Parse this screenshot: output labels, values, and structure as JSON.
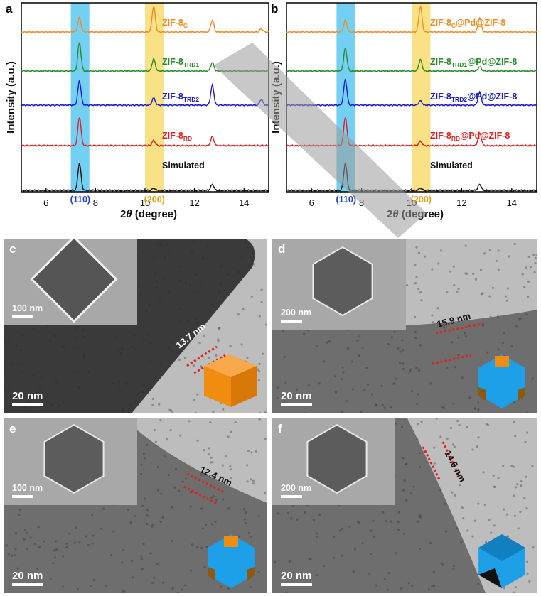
{
  "xrd_panels": [
    {
      "letter": "a",
      "series": [
        {
          "label": "ZIF-8",
          "sub": "C",
          "suffix": "",
          "color": "#f08c20",
          "peaks": [
            [
              7.35,
              0.55
            ],
            [
              10.35,
              1.0
            ],
            [
              12.72,
              0.45
            ],
            [
              14.7,
              0.12
            ]
          ]
        },
        {
          "label": "ZIF-8",
          "sub": "TRD1",
          "suffix": "",
          "color": "#2a8a2a",
          "peaks": [
            [
              7.35,
              1.0
            ],
            [
              10.35,
              0.42
            ],
            [
              12.72,
              0.3
            ]
          ]
        },
        {
          "label": "ZIF-8",
          "sub": "TRD2",
          "suffix": "",
          "color": "#1a1ac8",
          "peaks": [
            [
              7.35,
              0.85
            ],
            [
              10.35,
              0.25
            ],
            [
              12.72,
              0.7
            ],
            [
              14.7,
              0.2
            ]
          ]
        },
        {
          "label": "ZIF-8",
          "sub": "RD",
          "suffix": "",
          "color": "#e02020",
          "peaks": [
            [
              7.35,
              1.0
            ],
            [
              10.35,
              0.18
            ],
            [
              12.72,
              0.32
            ]
          ]
        },
        {
          "label": "Simulated",
          "sub": "",
          "suffix": "",
          "color": "#111111",
          "peaks": [
            [
              7.35,
              1.0
            ],
            [
              10.35,
              0.08
            ],
            [
              12.72,
              0.22
            ]
          ]
        }
      ]
    },
    {
      "letter": "b",
      "series": [
        {
          "label": "ZIF-8",
          "sub": "C",
          "suffix": "@Pd@ZIF-8",
          "color": "#f08c20",
          "peaks": [
            [
              7.35,
              0.45
            ],
            [
              10.35,
              1.0
            ],
            [
              12.72,
              0.55
            ]
          ]
        },
        {
          "label": "ZIF-8",
          "sub": "TRD1",
          "suffix": "@Pd@ZIF-8",
          "color": "#2a8a2a",
          "peaks": [
            [
              7.35,
              0.8
            ],
            [
              10.35,
              0.4
            ],
            [
              12.72,
              0.15
            ]
          ]
        },
        {
          "label": "ZIF-8",
          "sub": "TRD2",
          "suffix": "@Pd@ZIF-8",
          "color": "#1a1ac8",
          "peaks": [
            [
              7.35,
              0.9
            ],
            [
              10.35,
              0.15
            ],
            [
              12.72,
              0.45
            ]
          ]
        },
        {
          "label": "ZIF-8",
          "sub": "RD",
          "suffix": "@Pd@ZIF-8",
          "color": "#e02020",
          "peaks": [
            [
              7.35,
              1.0
            ],
            [
              10.35,
              0.15
            ],
            [
              12.72,
              0.45
            ]
          ]
        },
        {
          "label": "Simulated",
          "sub": "",
          "suffix": "",
          "color": "#111111",
          "peaks": [
            [
              7.35,
              1.0
            ],
            [
              10.35,
              0.08
            ],
            [
              12.72,
              0.22
            ]
          ]
        }
      ]
    }
  ],
  "axis": {
    "ylabel": "Intensity (a.u.)",
    "xlabel_prefix": "2",
    "xlabel_theta": "θ",
    "xlabel_suffix": " (degree)",
    "xrange": [
      5,
      15
    ],
    "ticks": [
      "6",
      "8",
      "10",
      "12",
      "14"
    ],
    "tick_values": [
      6,
      8,
      10,
      12,
      14
    ]
  },
  "bands": {
    "band_110": {
      "label": "(110)",
      "from": 7.0,
      "to": 7.75,
      "color": "#5bc8f0"
    },
    "band_200": {
      "label": "(200)",
      "from": 10.0,
      "to": 10.75,
      "color": "#f8dc70"
    }
  },
  "tem": [
    {
      "letter": "c",
      "scale": "20 nm",
      "inset_scale": "100 nm",
      "thickness": "13.7 nm",
      "shape": "cube"
    },
    {
      "letter": "d",
      "scale": "20 nm",
      "inset_scale": "200 nm",
      "thickness": "15.9 nm",
      "shape": "truncated-rd"
    },
    {
      "letter": "e",
      "scale": "20 nm",
      "inset_scale": "100 nm",
      "thickness": "12.4 nm",
      "shape": "truncated-rd-2"
    },
    {
      "letter": "f",
      "scale": "20 nm",
      "inset_scale": "200 nm",
      "thickness": "14.6 nm",
      "shape": "rhombic-dodecahedron"
    }
  ],
  "colors": {
    "cube": "#f08c10",
    "rd": "#1ea0e8",
    "rd_dark": "#1080c0",
    "trunc": "#8a5a10"
  }
}
